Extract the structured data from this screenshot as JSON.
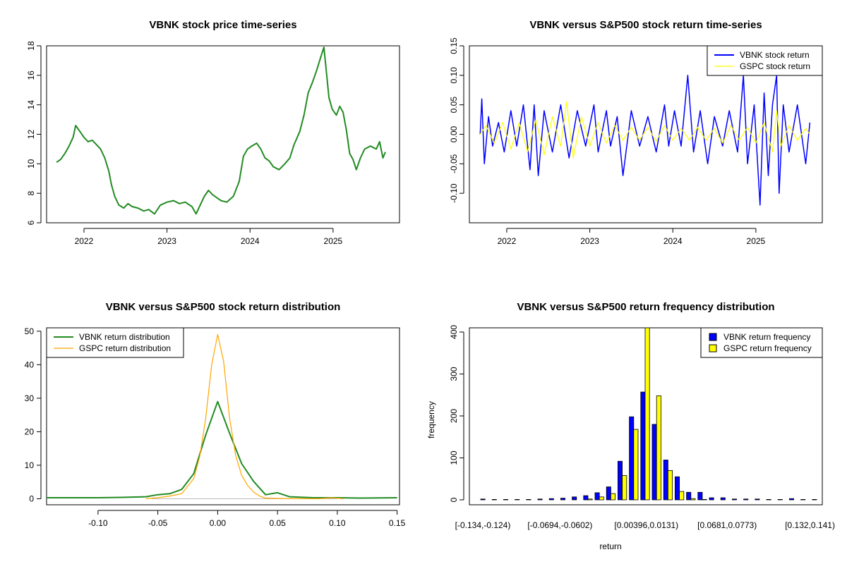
{
  "chart_data": [
    {
      "id": "p1",
      "type": "line",
      "title": "VBNK stock price time-series",
      "xlabel": "",
      "ylabel": "",
      "xlim": [
        2021.55,
        2025.8
      ],
      "ylim": [
        6,
        18
      ],
      "xticks": [
        2022,
        2023,
        2024,
        2025
      ],
      "xtick_labels": [
        "2022",
        "2023",
        "2024",
        "2025"
      ],
      "yticks": [
        6,
        8,
        10,
        12,
        14,
        16,
        18
      ],
      "ytick_labels": [
        "6",
        "8",
        "10",
        "12",
        "14",
        "16",
        "18"
      ],
      "series": [
        {
          "color": "#228B22",
          "x": [
            2021.67,
            2021.72,
            2021.77,
            2021.82,
            2021.87,
            2021.9,
            2021.95,
            2022.0,
            2022.05,
            2022.1,
            2022.15,
            2022.2,
            2022.25,
            2022.3,
            2022.33,
            2022.37,
            2022.42,
            2022.48,
            2022.53,
            2022.58,
            2022.65,
            2022.72,
            2022.78,
            2022.85,
            2022.92,
            2023.0,
            2023.08,
            2023.15,
            2023.22,
            2023.3,
            2023.35,
            2023.4,
            2023.45,
            2023.5,
            2023.55,
            2023.6,
            2023.65,
            2023.72,
            2023.8,
            2023.87,
            2023.92,
            2023.97,
            2024.02,
            2024.08,
            2024.13,
            2024.18,
            2024.23,
            2024.28,
            2024.35,
            2024.42,
            2024.48,
            2024.53,
            2024.6,
            2024.65,
            2024.7,
            2024.75,
            2024.8,
            2024.85,
            2024.89,
            2024.92,
            2024.95,
            2024.99,
            2025.04,
            2025.08,
            2025.12,
            2025.16,
            2025.2,
            2025.24,
            2025.28,
            2025.33,
            2025.38,
            2025.45,
            2025.52,
            2025.56,
            2025.6,
            2025.63
          ],
          "values": [
            10.1,
            10.3,
            10.7,
            11.2,
            11.8,
            12.6,
            12.2,
            11.8,
            11.5,
            11.6,
            11.3,
            11.0,
            10.4,
            9.5,
            8.6,
            7.8,
            7.2,
            7.0,
            7.3,
            7.1,
            7.0,
            6.8,
            6.9,
            6.6,
            7.2,
            7.4,
            7.5,
            7.3,
            7.4,
            7.1,
            6.6,
            7.2,
            7.8,
            8.2,
            7.9,
            7.7,
            7.5,
            7.4,
            7.8,
            8.8,
            10.5,
            11.0,
            11.2,
            11.4,
            11.0,
            10.4,
            10.2,
            9.8,
            9.6,
            10.0,
            10.4,
            11.3,
            12.2,
            13.3,
            14.8,
            15.5,
            16.3,
            17.2,
            17.9,
            16.2,
            14.5,
            13.7,
            13.3,
            13.9,
            13.5,
            12.3,
            10.7,
            10.3,
            9.6,
            10.4,
            11.0,
            11.2,
            11.0,
            11.5,
            10.4,
            10.8
          ]
        }
      ]
    },
    {
      "id": "p2",
      "type": "line",
      "title": "VBNK versus S&P500 stock return time-series",
      "xlabel": "",
      "ylabel": "",
      "xlim": [
        2021.55,
        2025.8
      ],
      "ylim": [
        -0.15,
        0.15
      ],
      "xticks": [
        2022,
        2023,
        2024,
        2025
      ],
      "xtick_labels": [
        "2022",
        "2023",
        "2024",
        "2025"
      ],
      "yticks": [
        -0.1,
        -0.05,
        0.0,
        0.05,
        0.1,
        0.15
      ],
      "ytick_labels": [
        "-0.10",
        "-0.05",
        "0.00",
        "0.05",
        "0.10",
        "0.15"
      ],
      "legend": {
        "position": "top-right",
        "entries": [
          "VBNK stock return",
          "GSPC stock return"
        ]
      },
      "series": [
        {
          "name": "VBNK stock return",
          "color": "#0000FF",
          "x": [
            2021.68,
            2021.7,
            2021.73,
            2021.78,
            2021.83,
            2021.9,
            2021.97,
            2022.05,
            2022.12,
            2022.2,
            2022.28,
            2022.33,
            2022.38,
            2022.45,
            2022.55,
            2022.65,
            2022.75,
            2022.85,
            2022.95,
            2023.05,
            2023.1,
            2023.2,
            2023.25,
            2023.33,
            2023.4,
            2023.5,
            2023.6,
            2023.7,
            2023.8,
            2023.9,
            2023.95,
            2024.02,
            2024.1,
            2024.18,
            2024.25,
            2024.33,
            2024.42,
            2024.5,
            2024.6,
            2024.68,
            2024.78,
            2024.85,
            2024.9,
            2024.98,
            2025.05,
            2025.1,
            2025.15,
            2025.2,
            2025.25,
            2025.28,
            2025.33,
            2025.4,
            2025.5,
            2025.6,
            2025.65
          ],
          "values": [
            0.0,
            0.06,
            -0.05,
            0.03,
            -0.02,
            0.02,
            -0.03,
            0.04,
            -0.02,
            0.05,
            -0.06,
            0.05,
            -0.07,
            0.04,
            -0.03,
            0.05,
            -0.04,
            0.04,
            -0.02,
            0.05,
            -0.03,
            0.04,
            -0.02,
            0.03,
            -0.07,
            0.04,
            -0.02,
            0.03,
            -0.03,
            0.05,
            -0.02,
            0.04,
            -0.02,
            0.1,
            -0.03,
            0.04,
            -0.05,
            0.03,
            -0.02,
            0.04,
            -0.03,
            0.1,
            -0.05,
            0.05,
            -0.12,
            0.07,
            -0.07,
            0.05,
            0.1,
            -0.1,
            0.05,
            -0.03,
            0.05,
            -0.05,
            0.02
          ]
        },
        {
          "name": "GSPC stock return",
          "color": "#FFFF00",
          "x": [
            2021.68,
            2021.75,
            2021.85,
            2021.95,
            2022.05,
            2022.15,
            2022.25,
            2022.35,
            2022.45,
            2022.55,
            2022.65,
            2022.72,
            2022.8,
            2022.9,
            2023.0,
            2023.1,
            2023.2,
            2023.3,
            2023.4,
            2023.5,
            2023.6,
            2023.7,
            2023.8,
            2023.9,
            2024.0,
            2024.1,
            2024.2,
            2024.3,
            2024.4,
            2024.5,
            2024.6,
            2024.7,
            2024.8,
            2024.9,
            2025.0,
            2025.1,
            2025.2,
            2025.25,
            2025.3,
            2025.4,
            2025.5,
            2025.6,
            2025.65
          ],
          "values": [
            0.0,
            0.015,
            -0.015,
            0.02,
            -0.025,
            0.02,
            -0.03,
            0.025,
            -0.035,
            0.03,
            -0.02,
            0.055,
            -0.04,
            0.03,
            -0.02,
            0.02,
            -0.015,
            0.015,
            -0.01,
            0.012,
            -0.01,
            0.012,
            -0.012,
            0.015,
            -0.01,
            0.01,
            -0.01,
            0.012,
            -0.01,
            0.01,
            -0.015,
            0.015,
            -0.01,
            0.012,
            -0.015,
            0.02,
            -0.03,
            0.04,
            -0.02,
            0.015,
            -0.01,
            0.01,
            0.0
          ]
        }
      ]
    },
    {
      "id": "p3",
      "type": "line",
      "title": "VBNK versus S&P500 stock return distribution",
      "xlabel": "",
      "ylabel": "",
      "xlim": [
        -0.143,
        0.152
      ],
      "ylim": [
        -1.8,
        51
      ],
      "xticks": [
        -0.1,
        -0.05,
        0.0,
        0.05,
        0.1,
        0.15
      ],
      "xtick_labels": [
        "-0.10",
        "-0.05",
        "0.00",
        "0.05",
        "0.10",
        "0.15"
      ],
      "yticks": [
        0,
        10,
        20,
        30,
        40,
        50
      ],
      "ytick_labels": [
        "0",
        "10",
        "20",
        "30",
        "40",
        "50"
      ],
      "legend": {
        "position": "top-left",
        "entries": [
          "VBNK return distribution",
          "GSPC return distribution"
        ]
      },
      "series": [
        {
          "name": "VBNK return distribution",
          "color": "#228B22",
          "x": [
            -0.143,
            -0.1,
            -0.08,
            -0.06,
            -0.05,
            -0.04,
            -0.03,
            -0.02,
            -0.01,
            0.0,
            0.01,
            0.02,
            0.03,
            0.04,
            0.05,
            0.06,
            0.08,
            0.1,
            0.12,
            0.15
          ],
          "values": [
            0.3,
            0.3,
            0.4,
            0.6,
            1.2,
            1.5,
            2.8,
            7.5,
            19.0,
            29.0,
            19.5,
            10.5,
            5.2,
            1.2,
            1.8,
            0.6,
            0.3,
            0.3,
            0.2,
            0.3
          ]
        },
        {
          "name": "GSPC return distribution",
          "color": "#FFA500",
          "x": [
            -0.06,
            -0.05,
            -0.04,
            -0.03,
            -0.02,
            -0.015,
            -0.01,
            -0.005,
            0.0,
            0.005,
            0.01,
            0.015,
            0.02,
            0.025,
            0.03,
            0.035,
            0.04,
            0.06,
            0.085,
            0.095,
            0.105
          ],
          "values": [
            0.0,
            0.3,
            0.8,
            1.5,
            6.0,
            12.5,
            24.0,
            40.0,
            49.0,
            41.0,
            24.0,
            13.0,
            7.0,
            4.0,
            2.0,
            0.8,
            0.2,
            0.0,
            0.0,
            0.3,
            0.0
          ]
        }
      ]
    },
    {
      "id": "p4",
      "type": "bar",
      "title": "VBNK versus S&P500 return frequency distribution",
      "xlabel": "return",
      "ylabel": "frequency",
      "ylim": [
        0,
        410
      ],
      "yticks": [
        0,
        100,
        200,
        300,
        400
      ],
      "ytick_labels": [
        "0",
        "100",
        "200",
        "300",
        "400"
      ],
      "x_labels_shown": [
        "[-0.134,-0.124)",
        "[-0.0694,-0.0602)",
        "[0.00396,0.0131)",
        "[0.0681,0.0773)",
        "[0.132,0.141)"
      ],
      "legend": {
        "position": "top-right",
        "entries": [
          "VBNK return frequency",
          "GSPC return frequency"
        ]
      },
      "series": [
        {
          "name": "VBNK return frequency",
          "color": "#0000FF",
          "values": [
            2,
            1,
            1,
            1,
            1,
            2,
            3,
            4,
            7,
            10,
            17,
            31,
            92,
            198,
            257,
            180,
            95,
            55,
            18,
            18,
            5,
            5,
            2,
            2,
            2,
            1,
            1,
            3,
            1,
            1
          ]
        },
        {
          "name": "GSPC return frequency",
          "color": "#FFFF00",
          "values": [
            0,
            0,
            0,
            0,
            0,
            0,
            0,
            0,
            0,
            2,
            7,
            15,
            58,
            168,
            410,
            248,
            70,
            20,
            3,
            1,
            0,
            0,
            0,
            0,
            0,
            0,
            0,
            0,
            0,
            0
          ]
        }
      ]
    }
  ]
}
